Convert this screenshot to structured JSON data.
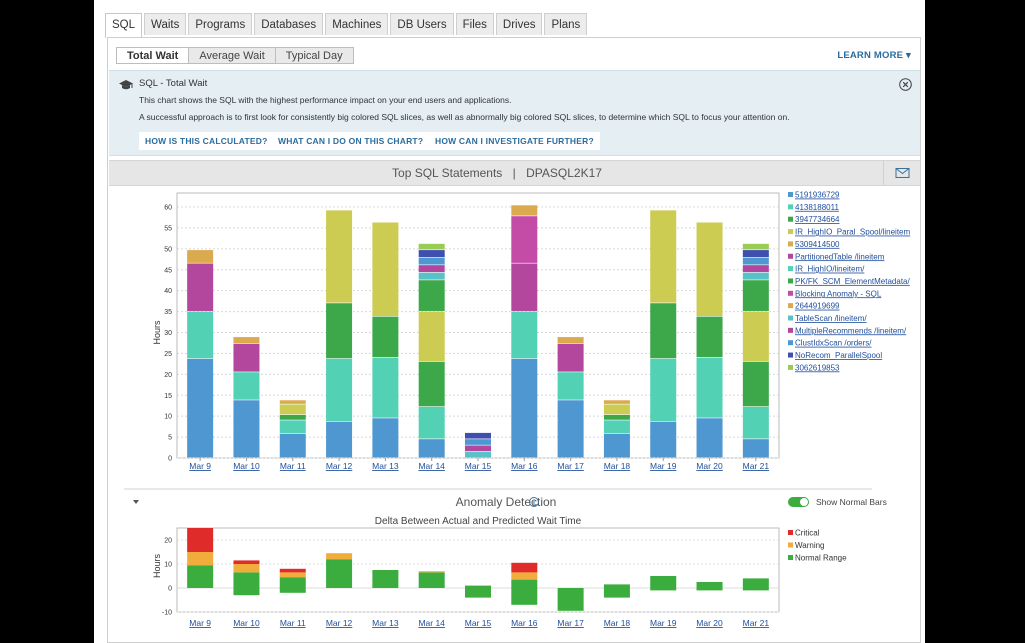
{
  "tabs": [
    "SQL",
    "Waits",
    "Programs",
    "Databases",
    "Machines",
    "DB Users",
    "Files",
    "Drives",
    "Plans"
  ],
  "active_tab": "SQL",
  "subtabs": [
    "Total Wait",
    "Average Wait",
    "Typical Day"
  ],
  "active_subtab": "Total Wait",
  "learn_more": "LEARN MORE",
  "info": {
    "title": "SQL - Total Wait",
    "line1": "This chart shows the SQL with the highest performance impact on your end users and applications.",
    "line2": "A successful approach is to first look for consistently big colored SQL slices, as well as abnormally big colored SQL slices, to determine which SQL to focus your attention on.",
    "buttons": [
      "HOW IS THIS CALCULATED?",
      "WHAT CAN I DO ON THIS CHART?",
      "HOW CAN I INVESTIGATE FURTHER?"
    ]
  },
  "chart_header": {
    "title": "Top SQL Statements",
    "separator": "|",
    "instance": "DPASQL2K17"
  },
  "chart_data": [
    {
      "type": "bar",
      "stacked": true,
      "ylabel": "Hours",
      "ylim": [
        0,
        60
      ],
      "yticks": [
        0,
        5,
        10,
        15,
        20,
        25,
        30,
        35,
        40,
        45,
        50,
        55,
        60
      ],
      "grid": true,
      "legend_position": "right",
      "categories": [
        "Mar 9",
        "Mar 10",
        "Mar 11",
        "Mar 12",
        "Mar 13",
        "Mar 14",
        "Mar 15",
        "Mar 16",
        "Mar 17",
        "Mar 18",
        "Mar 19",
        "Mar 20",
        "Mar 21"
      ],
      "series": [
        {
          "name": "5191936729",
          "color": "#4f97d1",
          "values": [
            23.7,
            13.8,
            5.8,
            8.7,
            9.5,
            4.5,
            0,
            23.7,
            13.8,
            5.8,
            8.7,
            9.5,
            4.5
          ]
        },
        {
          "name": "4138188011",
          "color": "#52d1b4",
          "values": [
            11.3,
            6.7,
            3.2,
            15,
            14.5,
            7.7,
            0,
            11.3,
            6.7,
            3.2,
            15,
            14.5,
            7.7
          ]
        },
        {
          "name": "3947734664",
          "color": "#3ca84a",
          "values": [
            0,
            0,
            1.3,
            13.3,
            9.8,
            10.8,
            0,
            0,
            0,
            1.3,
            13.3,
            9.8,
            10.8
          ]
        },
        {
          "name": "IR_HighIO_Paral_Spool/lineitem",
          "color": "#cccc52",
          "values": [
            0,
            0,
            2.5,
            22.2,
            22.5,
            12,
            0,
            0,
            0,
            2.5,
            22.2,
            22.5,
            12
          ]
        },
        {
          "name": "5309414500",
          "color": "#dbaa4f",
          "values": [
            0,
            0,
            0,
            0,
            0,
            0,
            0,
            0,
            0,
            0,
            0,
            0,
            0
          ]
        },
        {
          "name": "PartitionedTable /lineitem",
          "color": "#b3479e",
          "values": [
            11.5,
            6.8,
            0,
            0,
            0,
            0,
            0,
            11.5,
            6.8,
            0,
            0,
            0,
            0
          ]
        },
        {
          "name": "IR_HighIO/lineitem/",
          "color": "#52d1b4",
          "values": [
            0,
            0,
            0,
            0,
            0,
            0,
            0,
            0,
            0,
            0,
            0,
            0,
            0
          ]
        },
        {
          "name": "PK/FK_SCM_ElementMetadata/",
          "color": "#3ca84a",
          "values": [
            0,
            0,
            0,
            0,
            0,
            7.5,
            0,
            0,
            0,
            0,
            0,
            0,
            7.5
          ]
        },
        {
          "name": "Blocking Anomaly - SQL",
          "color": "#c44ca7",
          "values": [
            0,
            0,
            0,
            0,
            0,
            0,
            0,
            11.3,
            0,
            0,
            0,
            0,
            0
          ]
        },
        {
          "name": "2644919699",
          "color": "#dbaa4f",
          "values": [
            3.2,
            1.6,
            1.0,
            0,
            0,
            0,
            0,
            2.6,
            1.6,
            1.0,
            0,
            0,
            0
          ]
        },
        {
          "name": "TableScan /lineitem/",
          "color": "#58c2c8",
          "values": [
            0,
            0,
            0,
            0,
            0,
            1.8,
            1.5,
            0,
            0,
            0,
            0,
            0,
            1.8
          ]
        },
        {
          "name": "MultipleRecommends /lineitem/",
          "color": "#b3479e",
          "values": [
            0,
            0,
            0,
            0,
            0,
            1.8,
            1.5,
            0,
            0,
            0,
            0,
            0,
            1.8
          ]
        },
        {
          "name": "ClustIdxScan /orders/",
          "color": "#4f97d1",
          "values": [
            0,
            0,
            0,
            0,
            0,
            1.8,
            1.5,
            0,
            0,
            0,
            0,
            0,
            1.8
          ]
        },
        {
          "name": "NoRecom_ParallelSpool",
          "color": "#3f4fb0",
          "values": [
            0,
            0,
            0,
            0,
            0,
            1.8,
            1.5,
            0,
            0,
            0,
            0,
            0,
            1.8
          ]
        },
        {
          "name": "3062619853",
          "color": "#99cc52",
          "values": [
            0,
            0,
            0,
            0,
            0,
            1.5,
            0,
            0,
            0,
            0,
            0,
            0,
            1.5
          ]
        }
      ]
    },
    {
      "type": "bar",
      "stacked": true,
      "title": "Delta Between Actual and Predicted Wait Time",
      "ylabel": "Hours",
      "ylim": [
        -10,
        25
      ],
      "yticks": [
        -10,
        0,
        10,
        20
      ],
      "legend_position": "right",
      "categories": [
        "Mar 9",
        "Mar 10",
        "Mar 11",
        "Mar 12",
        "Mar 13",
        "Mar 14",
        "Mar 15",
        "Mar 16",
        "Mar 17",
        "Mar 18",
        "Mar 19",
        "Mar 20",
        "Mar 21"
      ],
      "series": [
        {
          "name": "Critical",
          "color": "#e02b2b",
          "values": [
            10,
            1.5,
            1.5,
            0,
            0,
            0,
            0,
            4,
            0,
            0,
            0,
            0,
            0
          ]
        },
        {
          "name": "Warning",
          "color": "#f0ad3c",
          "values": [
            5.5,
            3.5,
            2,
            2.5,
            0,
            0.5,
            0,
            3,
            0,
            0,
            0,
            0,
            0
          ]
        },
        {
          "name": "Normal Range",
          "color": "#3aad3e",
          "values": [
            9.5,
            6.5,
            4.5,
            12,
            7.5,
            6.5,
            1,
            3.5,
            0,
            1.5,
            5,
            2.5,
            4
          ]
        },
        {
          "name": "Normal Range (negative)",
          "color": "#3aad3e",
          "values": [
            0,
            -3,
            -2,
            0,
            0,
            0,
            -4,
            -7,
            -9.5,
            -4,
            -1,
            -1,
            -1
          ]
        }
      ]
    }
  ],
  "anomaly": {
    "title": "Anomaly Detection",
    "toggle_label": "Show Normal Bars",
    "toggle_on": true
  }
}
